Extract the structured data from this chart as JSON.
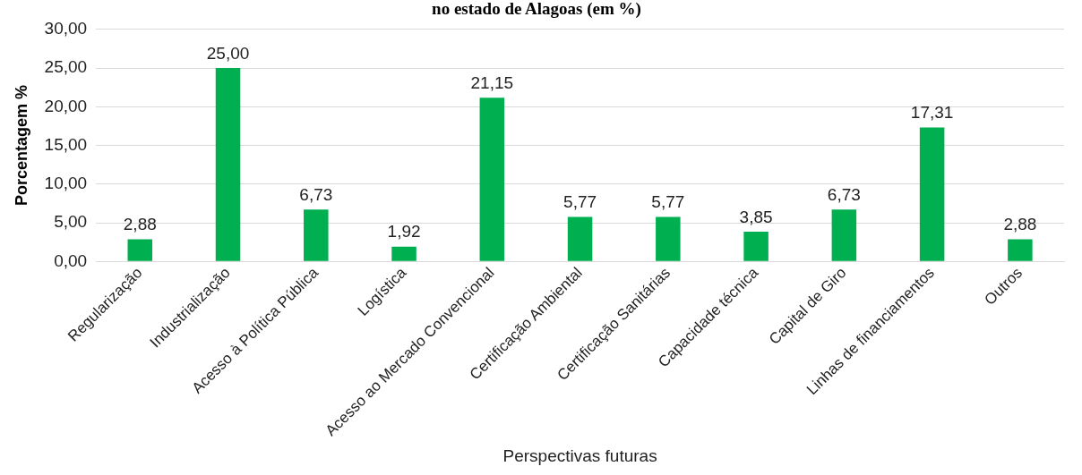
{
  "chart_data": {
    "type": "bar",
    "title": "no estado de Alagoas (em %)",
    "xlabel": "Perspectivas futuras",
    "ylabel": "Porcentagem %",
    "categories": [
      "Regularização",
      "Industrialização",
      "Acesso à Política Pública",
      "Logística",
      "Acesso ao Mercado Convencional",
      "Certificação Ambiental",
      "Certificação Sanitárias",
      "Capacidade técnica",
      "Capital de Giro",
      "Linhas de financiamentos",
      "Outros"
    ],
    "values": [
      2.88,
      25.0,
      6.73,
      1.92,
      21.15,
      5.77,
      5.77,
      3.85,
      6.73,
      17.31,
      2.88
    ],
    "value_labels": [
      "2,88",
      "25,00",
      "6,73",
      "1,92",
      "21,15",
      "5,77",
      "5,77",
      "3,85",
      "6,73",
      "17,31",
      "2,88"
    ],
    "color": "#00b050",
    "ylim": [
      0,
      30
    ],
    "yticks": [
      {
        "value": 0,
        "label": "0,00"
      },
      {
        "value": 5,
        "label": "5,00"
      },
      {
        "value": 10,
        "label": "10,00"
      },
      {
        "value": 15,
        "label": "15,00"
      },
      {
        "value": 20,
        "label": "20,00"
      },
      {
        "value": 25,
        "label": "25,00"
      },
      {
        "value": 30,
        "label": "30,00"
      }
    ],
    "grid": "y",
    "legend": false
  }
}
